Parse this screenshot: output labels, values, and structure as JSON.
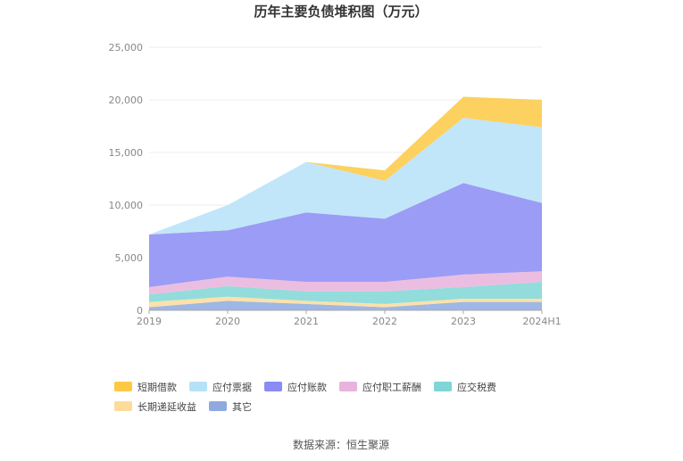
{
  "chart_data": {
    "type": "area",
    "stacked": true,
    "title": "历年主要负债堆积图（万元）",
    "categories": [
      "2019",
      "2020",
      "2021",
      "2022",
      "2023",
      "2024H1"
    ],
    "ylim": [
      0,
      25000
    ],
    "yticks": [
      "0",
      "5,000",
      "10,000",
      "15,000",
      "20,000",
      "25,000"
    ],
    "grid": true,
    "legend_position": "bottom-left",
    "series": [
      {
        "name": "其它",
        "color": "#8eaadf",
        "values": [
          300,
          900,
          600,
          300,
          800,
          800
        ]
      },
      {
        "name": "长期递延收益",
        "color": "#fddc9a",
        "values": [
          500,
          400,
          300,
          300,
          300,
          300
        ]
      },
      {
        "name": "应交税费",
        "color": "#7fd6d6",
        "values": [
          700,
          1000,
          900,
          1200,
          1100,
          1600
        ]
      },
      {
        "name": "应付职工薪酬",
        "color": "#e8b3dc",
        "values": [
          700,
          900,
          900,
          900,
          1200,
          1000
        ]
      },
      {
        "name": "应付账款",
        "color": "#8a8bf3",
        "values": [
          5000,
          4400,
          6600,
          6000,
          8700,
          6500
        ]
      },
      {
        "name": "应付票据",
        "color": "#b6e2f8",
        "values": [
          0,
          2400,
          4800,
          3600,
          6200,
          7200
        ]
      },
      {
        "name": "短期借款",
        "color": "#fcc944",
        "values": [
          0,
          0,
          0,
          1000,
          2000,
          2600
        ]
      }
    ],
    "legend_order": [
      "短期借款",
      "应付票据",
      "应付账款",
      "应付职工薪酬",
      "应交税费",
      "长期递延收益",
      "其它"
    ]
  },
  "footer": {
    "source": "数据来源：恒生聚源"
  }
}
